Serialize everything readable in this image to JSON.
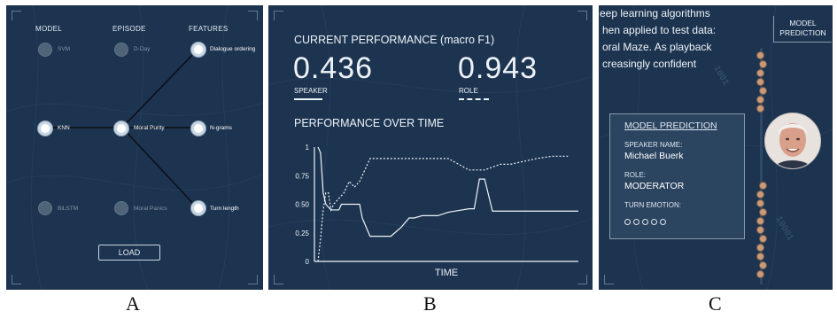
{
  "panel_a": {
    "headers": {
      "model": "MODEL",
      "episode": "EPISODE",
      "features": "FEATURES"
    },
    "model_options": [
      {
        "label": "SVM",
        "selected": false
      },
      {
        "label": "KNN",
        "selected": true
      },
      {
        "label": "BiLSTM",
        "selected": false
      }
    ],
    "episode_options": [
      {
        "label": "D-Day",
        "selected": false
      },
      {
        "label": "Moral Purity",
        "selected": true
      },
      {
        "label": "Moral Panics",
        "selected": false
      }
    ],
    "feature_options": [
      {
        "label": "Dialogue ordering",
        "selected": true
      },
      {
        "label": "N-grams",
        "selected": true
      },
      {
        "label": "Turn length",
        "selected": true
      }
    ],
    "load_button": "LOAD",
    "caption": "A"
  },
  "panel_b": {
    "title": "CURRENT PERFORMANCE (macro F1)",
    "speaker_score": "0.436",
    "speaker_label": "SPEAKER",
    "role_score": "0.943",
    "role_label": "ROLE",
    "chart_title": "PERFORMANCE OVER TIME",
    "caption": "B"
  },
  "chart_data": {
    "type": "line",
    "title": "PERFORMANCE OVER TIME",
    "xlabel": "TIME",
    "ylabel": "",
    "ylim": [
      0,
      1
    ],
    "yticks": [
      "0",
      "0.25",
      "0.50",
      "0.75",
      "1"
    ],
    "grid": false,
    "series": [
      {
        "name": "SPEAKER",
        "style": "solid",
        "x": [
          0,
          1,
          2,
          3,
          5,
          8,
          9,
          12,
          16,
          17,
          20,
          25,
          28,
          32,
          35,
          37,
          40,
          46,
          50,
          58,
          60,
          62,
          64,
          67,
          72,
          75,
          80,
          82,
          90,
          100
        ],
        "y": [
          1.0,
          0.95,
          0.6,
          0.5,
          0.45,
          0.45,
          0.5,
          0.5,
          0.5,
          0.38,
          0.22,
          0.22,
          0.22,
          0.3,
          0.38,
          0.38,
          0.4,
          0.4,
          0.43,
          0.46,
          0.46,
          0.72,
          0.72,
          0.44,
          0.44,
          0.44,
          0.44,
          0.44,
          0.44,
          0.44
        ]
      },
      {
        "name": "ROLE",
        "style": "dashed",
        "x": [
          0,
          1,
          2,
          3,
          4,
          5,
          6,
          8,
          10,
          12,
          14,
          16,
          17,
          20,
          24,
          30,
          36,
          40,
          46,
          50,
          54,
          58,
          60,
          64,
          70,
          74,
          80,
          84,
          90,
          96
        ],
        "y": [
          0.0,
          0.2,
          0.45,
          0.6,
          0.6,
          0.45,
          0.5,
          0.55,
          0.6,
          0.7,
          0.65,
          0.7,
          0.75,
          0.9,
          0.9,
          0.9,
          0.9,
          0.9,
          0.9,
          0.9,
          0.85,
          0.8,
          0.8,
          0.8,
          0.85,
          0.85,
          0.88,
          0.9,
          0.92,
          0.92
        ]
      }
    ]
  },
  "panel_c": {
    "transcript_lines": [
      "eep learning algorithms",
      "hen applied to test data:",
      "oral Maze. As playback",
      "creasingly confident"
    ],
    "header_button": "MODEL\nPREDICTION",
    "box_title": "MODEL PREDICTION",
    "speaker_name_label": "SPEAKER NAME:",
    "speaker_name": "Michael Buerk",
    "role_label": "ROLE:",
    "role_value": "MODERATOR",
    "emotion_label": "TURN EMOTION:",
    "emotion_circles": 5,
    "caption": "C"
  },
  "colors": {
    "panel_bg": "#1d3450",
    "text": "#eef3f8",
    "node_inactive": "#4f6479",
    "node_active": "#ffffff"
  }
}
